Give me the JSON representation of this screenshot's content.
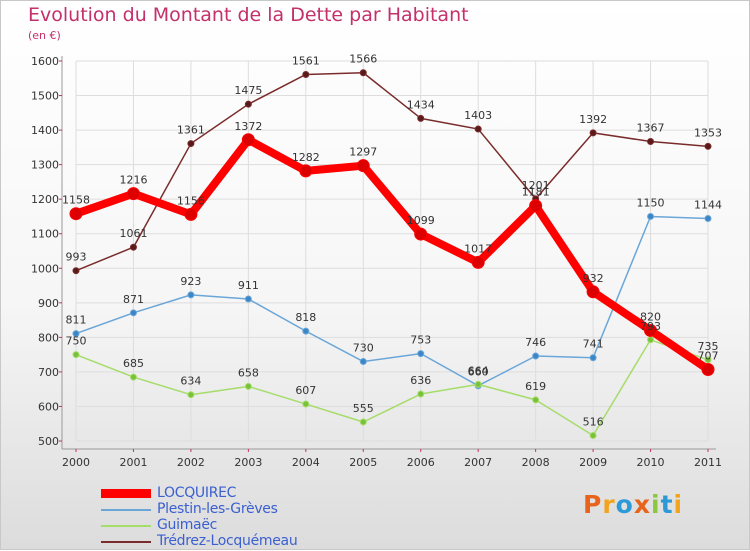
{
  "title": "Evolution du Montant de la Dette par Habitant",
  "unit": "(en €)",
  "logo": {
    "text": "Proxiti",
    "colors": [
      "#e8641c",
      "#f2a41e",
      "#2d9ad8",
      "#e8641c",
      "#8dc63f",
      "#2d9ad8",
      "#f2a41e"
    ]
  },
  "chart_data": {
    "type": "line",
    "title": "Evolution du Montant de la Dette par Habitant",
    "ylabel": "(en €)",
    "x": [
      "2000",
      "2001",
      "2002",
      "2003",
      "2004",
      "2005",
      "2006",
      "2007",
      "2008",
      "2009",
      "2010",
      "2011"
    ],
    "ylim": [
      500,
      1600
    ],
    "yticks": [
      "500",
      "600",
      "700",
      "800",
      "900",
      "1000",
      "1100",
      "1200",
      "1300",
      "1400",
      "1500",
      "1600"
    ],
    "grid": true,
    "legend_position": "bottom-left",
    "series": [
      {
        "name": "LOCQUIREC",
        "color": "#ff0000",
        "width": 8,
        "marker": 6,
        "values": [
          1158,
          1216,
          1156,
          1372,
          1282,
          1297,
          1099,
          1017,
          1181,
          932,
          820,
          707
        ],
        "labels": [
          "1158",
          "1216",
          "1156",
          "1372",
          "1282",
          "1297",
          "1099",
          "1017",
          "1181",
          "932",
          "820",
          "707"
        ]
      },
      {
        "name": "Plestin-les-Grèves",
        "color": "#6aa6d8",
        "width": 1.5,
        "marker": 3,
        "values": [
          811,
          871,
          923,
          911,
          818,
          730,
          753,
          660,
          746,
          741,
          1150,
          1144
        ],
        "labels": [
          "811",
          "871",
          "923",
          "911",
          "818",
          "730",
          "753",
          "660",
          "746",
          "741",
          "1150",
          "1144"
        ]
      },
      {
        "name": "Guimaëc",
        "color": "#a6dc6a",
        "width": 1.5,
        "marker": 3,
        "values": [
          750,
          685,
          634,
          658,
          607,
          555,
          636,
          664,
          619,
          516,
          793,
          735
        ],
        "labels": [
          "750",
          "685",
          "634",
          "658",
          "607",
          "555",
          "636",
          "664",
          "619",
          "516",
          "793",
          "735"
        ]
      },
      {
        "name": "Trédrez-Locquémeau",
        "color": "#7a2c2c",
        "width": 1.5,
        "marker": 3,
        "values": [
          993,
          1061,
          1361,
          1475,
          1561,
          1566,
          1434,
          1403,
          1201,
          1392,
          1367,
          1353
        ],
        "labels": [
          "993",
          "1061",
          "1361",
          "1475",
          "1561",
          "1566",
          "1434",
          "1403",
          "1201",
          "1392",
          "1367",
          "1353"
        ]
      }
    ]
  }
}
